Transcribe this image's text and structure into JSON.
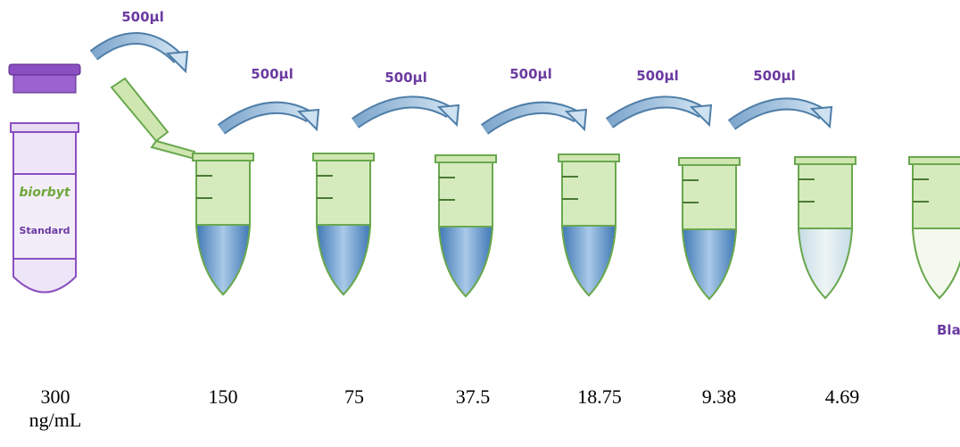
{
  "transfer_labels": [
    "500µl",
    "500µl",
    "500µl",
    "500µl",
    "500µl",
    "500µl"
  ],
  "stock": {
    "brand": "biorbyt",
    "label": "Standard"
  },
  "blank_label": "Blank",
  "concentrations": [
    "300 ng/mL",
    "150",
    "75",
    "37.5",
    "18.75",
    "9.38",
    "4.69"
  ]
}
